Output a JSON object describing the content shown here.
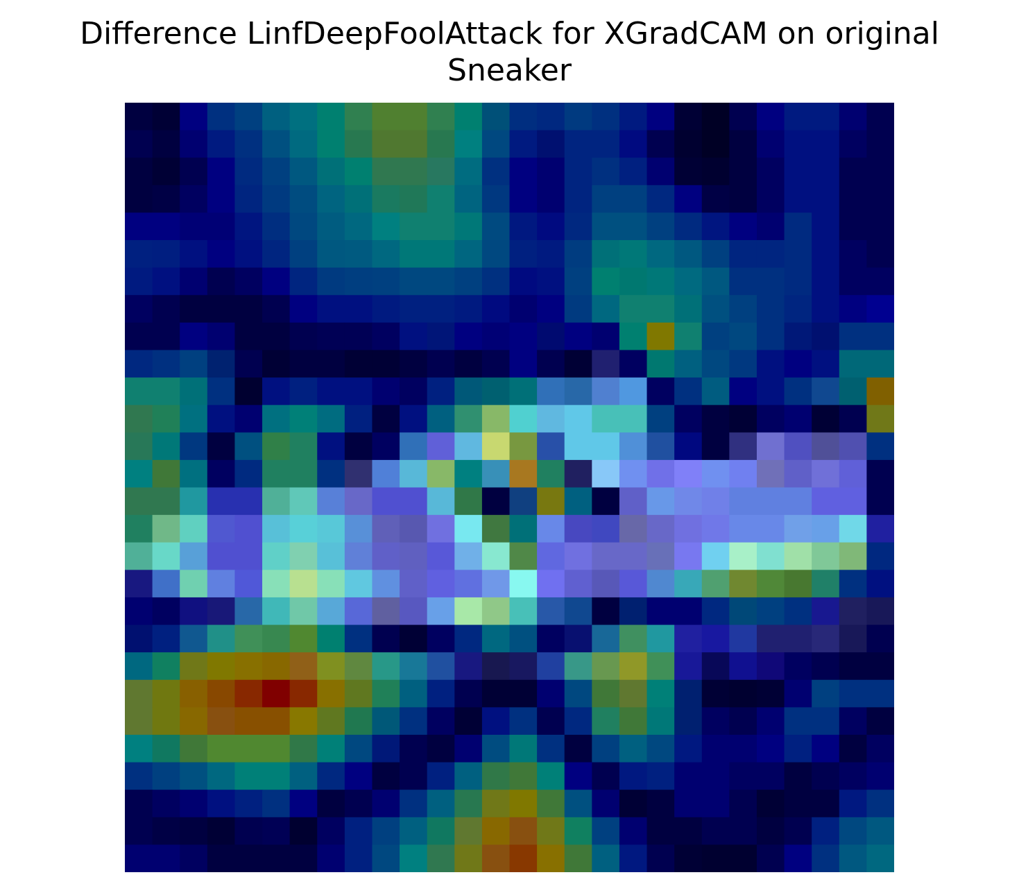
{
  "chart_data": {
    "type": "heatmap",
    "title": "Difference LinfDeepFoolAttack for XGradCAM on original\nSneaker",
    "xlabel": "",
    "ylabel": "",
    "axes_visible": false,
    "grid": false,
    "legend": "none",
    "rows": 28,
    "cols": 28,
    "cell_colors": [
      [
        "#000040",
        "#000035",
        "#000080",
        "#003080",
        "#004080",
        "#006080",
        "#007080",
        "#008070",
        "#308050",
        "#508030",
        "#508030",
        "#308050",
        "#008070",
        "#005078",
        "#002e80",
        "#002880",
        "#003a80",
        "#003080",
        "#001a80",
        "#000080",
        "#000035",
        "#000025",
        "#000050",
        "#000080",
        "#001a80",
        "#001a80",
        "#000070",
        "#000050"
      ],
      [
        "#000050",
        "#000040",
        "#000070",
        "#001a80",
        "#003080",
        "#005080",
        "#006a80",
        "#008070",
        "#287850",
        "#507830",
        "#507830",
        "#287850",
        "#008080",
        "#004880",
        "#001a80",
        "#001070",
        "#002480",
        "#002480",
        "#000a80",
        "#000050",
        "#000030",
        "#000025",
        "#000040",
        "#000070",
        "#001080",
        "#001080",
        "#000060",
        "#000050"
      ],
      [
        "#000040",
        "#000035",
        "#000050",
        "#000080",
        "#002a80",
        "#004080",
        "#005880",
        "#007078",
        "#008070",
        "#307850",
        "#307850",
        "#287860",
        "#006c80",
        "#003080",
        "#000080",
        "#000070",
        "#002480",
        "#003080",
        "#002080",
        "#000070",
        "#000035",
        "#000030",
        "#000040",
        "#000060",
        "#001080",
        "#001080",
        "#000050",
        "#000050"
      ],
      [
        "#000040",
        "#000045",
        "#000060",
        "#000080",
        "#002580",
        "#003a80",
        "#004c80",
        "#006480",
        "#007078",
        "#1a7a60",
        "#207858",
        "#108070",
        "#006480",
        "#003880",
        "#000080",
        "#000070",
        "#002480",
        "#004080",
        "#004080",
        "#002880",
        "#000080",
        "#000045",
        "#000040",
        "#000060",
        "#001080",
        "#001080",
        "#000050",
        "#000050"
      ],
      [
        "#000080",
        "#000080",
        "#000075",
        "#000075",
        "#001580",
        "#002e80",
        "#004880",
        "#005c80",
        "#006880",
        "#008080",
        "#108070",
        "#108070",
        "#007878",
        "#004a80",
        "#001880",
        "#000a80",
        "#002880",
        "#005080",
        "#005080",
        "#004080",
        "#002a80",
        "#001580",
        "#000080",
        "#000070",
        "#002a80",
        "#001080",
        "#000050",
        "#000050"
      ],
      [
        "#002080",
        "#001e80",
        "#001080",
        "#000080",
        "#001080",
        "#002580",
        "#004080",
        "#005880",
        "#005a80",
        "#006880",
        "#007878",
        "#007878",
        "#006680",
        "#004880",
        "#002080",
        "#001a80",
        "#003c80",
        "#007078",
        "#007878",
        "#006880",
        "#005880",
        "#004080",
        "#002580",
        "#002580",
        "#002a80",
        "#001080",
        "#000060",
        "#000050"
      ],
      [
        "#001a80",
        "#001080",
        "#000070",
        "#000050",
        "#000060",
        "#000080",
        "#002580",
        "#003a80",
        "#003e80",
        "#004080",
        "#004880",
        "#004880",
        "#004080",
        "#003080",
        "#000a80",
        "#001080",
        "#004080",
        "#008070",
        "#007870",
        "#007878",
        "#006a80",
        "#005880",
        "#003080",
        "#003080",
        "#002a80",
        "#001080",
        "#000060",
        "#000060"
      ],
      [
        "#000060",
        "#000050",
        "#000040",
        "#000040",
        "#000040",
        "#000050",
        "#000080",
        "#001080",
        "#001080",
        "#001a80",
        "#002080",
        "#002080",
        "#001a80",
        "#000a80",
        "#000070",
        "#000080",
        "#003a80",
        "#006880",
        "#108070",
        "#108070",
        "#007078",
        "#005080",
        "#004080",
        "#003080",
        "#002580",
        "#001080",
        "#000080",
        "#000090"
      ],
      [
        "#000050",
        "#000050",
        "#000080",
        "#000070",
        "#000040",
        "#000040",
        "#000050",
        "#000055",
        "#000055",
        "#000060",
        "#001080",
        "#001578",
        "#000080",
        "#000075",
        "#000080",
        "#000a70",
        "#000080",
        "#000070",
        "#008070",
        "#807800",
        "#108070",
        "#004080",
        "#004880",
        "#003080",
        "#001878",
        "#001070",
        "#003080",
        "#003080"
      ],
      [
        "#002880",
        "#003080",
        "#004080",
        "#002270",
        "#000050",
        "#000035",
        "#000040",
        "#000040",
        "#000035",
        "#000035",
        "#000040",
        "#000050",
        "#000040",
        "#000050",
        "#000080",
        "#000050",
        "#000035",
        "#202070",
        "#000060",
        "#007870",
        "#006080",
        "#004880",
        "#003880",
        "#001080",
        "#000080",
        "#001080",
        "#006878",
        "#006878"
      ],
      [
        "#108070",
        "#108070",
        "#007078",
        "#003080",
        "#000030",
        "#001080",
        "#002080",
        "#001080",
        "#001080",
        "#000070",
        "#000060",
        "#002080",
        "#005878",
        "#006070",
        "#007078",
        "#3070b8",
        "#2868a8",
        "#5080d0",
        "#5098e0",
        "#000060",
        "#003080",
        "#005c80",
        "#000080",
        "#001080",
        "#003080",
        "#104890",
        "#006070",
        "#806000"
      ],
      [
        "#307850",
        "#208058",
        "#007080",
        "#001080",
        "#000070",
        "#007080",
        "#008078",
        "#006c80",
        "#002080",
        "#000040",
        "#001080",
        "#006080",
        "#309070",
        "#88b868",
        "#50d0d0",
        "#60b8e0",
        "#60c8e8",
        "#48c0b8",
        "#48c0b8",
        "#004080",
        "#000060",
        "#000040",
        "#000035",
        "#000060",
        "#000070",
        "#000035",
        "#000050",
        "#707818"
      ],
      [
        "#287858",
        "#007878",
        "#003880",
        "#000040",
        "#005080",
        "#308048",
        "#208060",
        "#001080",
        "#000040",
        "#000060",
        "#3070b8",
        "#6060d8",
        "#60b8e0",
        "#c8d870",
        "#789840",
        "#2850a8",
        "#60c8e8",
        "#60c8e8",
        "#5090d8",
        "#2050a0",
        "#000880",
        "#000040",
        "#303080",
        "#7070d0",
        "#5050c0",
        "#505098",
        "#5050b0",
        "#003080"
      ],
      [
        "#008080",
        "#407838",
        "#007080",
        "#000060",
        "#002a80",
        "#208060",
        "#208060",
        "#003080",
        "#303070",
        "#5080d8",
        "#58b8d8",
        "#88b868",
        "#008080",
        "#3890b8",
        "#a87820",
        "#208060",
        "#202060",
        "#88c8f8",
        "#7090f0",
        "#7070e8",
        "#8080f8",
        "#7090f0",
        "#7080f0",
        "#7070b8",
        "#6060c8",
        "#7070d8",
        "#6060d8",
        "#000050"
      ],
      [
        "#307850",
        "#307850",
        "#2098a0",
        "#2830b0",
        "#2830b0",
        "#50b098",
        "#60c8b8",
        "#5880d8",
        "#6868c8",
        "#5050d0",
        "#5050d0",
        "#58b8d8",
        "#307848",
        "#000040",
        "#104080",
        "#787810",
        "#006080",
        "#000040",
        "#6060c8",
        "#6898e8",
        "#7088e8",
        "#7080e8",
        "#6080e0",
        "#6080e0",
        "#6080e0",
        "#6060e0",
        "#6060e0",
        "#000050"
      ],
      [
        "#208060",
        "#70b888",
        "#60d0c0",
        "#5058d0",
        "#5050d0",
        "#58c0d8",
        "#58d0d8",
        "#58c8d8",
        "#5890d8",
        "#6060b8",
        "#5858b0",
        "#7070e0",
        "#78e8f0",
        "#407840",
        "#007078",
        "#6888e8",
        "#4848c0",
        "#4048c0",
        "#6868a8",
        "#6868c8",
        "#7070e0",
        "#7078e8",
        "#6888e8",
        "#6888e8",
        "#70a0e8",
        "#68a0e8",
        "#70d8e8",
        "#2020a0"
      ],
      [
        "#50b098",
        "#68d8c8",
        "#58a0d8",
        "#5050d0",
        "#5050d0",
        "#60d0c8",
        "#80d0b0",
        "#58c0d8",
        "#6080d8",
        "#6060c8",
        "#6060c0",
        "#5858d8",
        "#70b0e8",
        "#88e8d0",
        "#508848",
        "#6068e0",
        "#7070e0",
        "#6868c8",
        "#6868c8",
        "#6870b8",
        "#7878f0",
        "#70d0f0",
        "#a8f0c8",
        "#80e0d0",
        "#a0e0a8",
        "#80c898",
        "#80b878",
        "#002880"
      ],
      [
        "#181880",
        "#4070c8",
        "#70d0b0",
        "#6080e0",
        "#5058d8",
        "#88e0b8",
        "#b8e090",
        "#88e0b8",
        "#60c8e0",
        "#6090e0",
        "#6060c8",
        "#6060e0",
        "#6070e0",
        "#7098e8",
        "#88f8f0",
        "#7070f0",
        "#6060d0",
        "#5858b8",
        "#5858d8",
        "#5088d0",
        "#38a8b8",
        "#50a070",
        "#708830",
        "#508838",
        "#487830",
        "#208068",
        "#003080",
        "#001080"
      ],
      [
        "#000070",
        "#000060",
        "#101080",
        "#181878",
        "#2868a8",
        "#40b8b8",
        "#70c8a8",
        "#58a8d8",
        "#5868d8",
        "#6060a0",
        "#5858c0",
        "#68a0e8",
        "#a8e8a8",
        "#90c888",
        "#48c0b8",
        "#2858a8",
        "#104890",
        "#000040",
        "#002070",
        "#000070",
        "#000070",
        "#002880",
        "#004878",
        "#004080",
        "#003080",
        "#181890",
        "#202060",
        "#181858"
      ],
      [
        "#001070",
        "#002080",
        "#105890",
        "#209088",
        "#409058",
        "#388850",
        "#508830",
        "#008070",
        "#003080",
        "#000050",
        "#000035",
        "#000060",
        "#002880",
        "#006880",
        "#005080",
        "#000060",
        "#081070",
        "#186898",
        "#409060",
        "#2098a0",
        "#2020a0",
        "#1818a0",
        "#2038a0",
        "#202070",
        "#202070",
        "#282878",
        "#181858",
        "#000050"
      ],
      [
        "#006880",
        "#108060",
        "#707818",
        "#807800",
        "#887000",
        "#886800",
        "#906018",
        "#809020",
        "#608840",
        "#289888",
        "#187898",
        "#2050a0",
        "#181880",
        "#181850",
        "#181860",
        "#2040a0",
        "#389888",
        "#689850",
        "#909828",
        "#409058",
        "#181898",
        "#080858",
        "#101090",
        "#100878",
        "#000060",
        "#000050",
        "#000040",
        "#000040"
      ],
      [
        "#607830",
        "#707810",
        "#886000",
        "#884800",
        "#882800",
        "#800000",
        "#882800",
        "#887000",
        "#607820",
        "#208058",
        "#006080",
        "#002080",
        "#000050",
        "#000035",
        "#000035",
        "#000070",
        "#004880",
        "#407838",
        "#607830",
        "#008078",
        "#002070",
        "#000035",
        "#000030",
        "#000035",
        "#000070",
        "#004080",
        "#003080",
        "#003080"
      ],
      [
        "#607830",
        "#707810",
        "#886800",
        "#885010",
        "#885000",
        "#885000",
        "#887800",
        "#607820",
        "#207850",
        "#005878",
        "#003080",
        "#000060",
        "#000035",
        "#001080",
        "#003080",
        "#000050",
        "#002880",
        "#208060",
        "#407838",
        "#007878",
        "#002070",
        "#000060",
        "#000050",
        "#000070",
        "#003080",
        "#003080",
        "#000060",
        "#000040"
      ],
      [
        "#008080",
        "#107860",
        "#407838",
        "#508830",
        "#508830",
        "#508830",
        "#307848",
        "#008078",
        "#004880",
        "#001878",
        "#000050",
        "#000040",
        "#000070",
        "#004c80",
        "#007878",
        "#003080",
        "#000040",
        "#004080",
        "#006080",
        "#004880",
        "#001880",
        "#000070",
        "#000070",
        "#000080",
        "#002080",
        "#000080",
        "#000040",
        "#000060"
      ],
      [
        "#003080",
        "#004080",
        "#005080",
        "#006880",
        "#008078",
        "#008078",
        "#006080",
        "#002880",
        "#000080",
        "#000040",
        "#000050",
        "#002080",
        "#006080",
        "#307848",
        "#407838",
        "#008078",
        "#000080",
        "#000050",
        "#001880",
        "#002080",
        "#000070",
        "#000070",
        "#000060",
        "#000060",
        "#000040",
        "#000050",
        "#000060",
        "#000070"
      ],
      [
        "#000050",
        "#000060",
        "#000070",
        "#001080",
        "#002080",
        "#003080",
        "#000080",
        "#000040",
        "#000050",
        "#000070",
        "#003080",
        "#006080",
        "#287850",
        "#707818",
        "#807800",
        "#407838",
        "#005080",
        "#000070",
        "#000035",
        "#000040",
        "#000070",
        "#000070",
        "#000050",
        "#000035",
        "#000040",
        "#000040",
        "#001880",
        "#003080"
      ],
      [
        "#000050",
        "#000045",
        "#000040",
        "#000035",
        "#000050",
        "#000055",
        "#000030",
        "#000060",
        "#002080",
        "#004080",
        "#006080",
        "#107860",
        "#607830",
        "#886800",
        "#885010",
        "#707818",
        "#108060",
        "#004080",
        "#000070",
        "#000040",
        "#000040",
        "#000050",
        "#000050",
        "#000040",
        "#000050",
        "#002080",
        "#004880",
        "#005880"
      ],
      [
        "#000070",
        "#000070",
        "#000060",
        "#000040",
        "#000040",
        "#000040",
        "#000040",
        "#000070",
        "#002080",
        "#004880",
        "#008080",
        "#307850",
        "#707818",
        "#885010",
        "#883800",
        "#887000",
        "#407838",
        "#006080",
        "#001880",
        "#000050",
        "#000035",
        "#000030",
        "#000030",
        "#000050",
        "#000080",
        "#003080",
        "#005880",
        "#006880"
      ]
    ]
  }
}
